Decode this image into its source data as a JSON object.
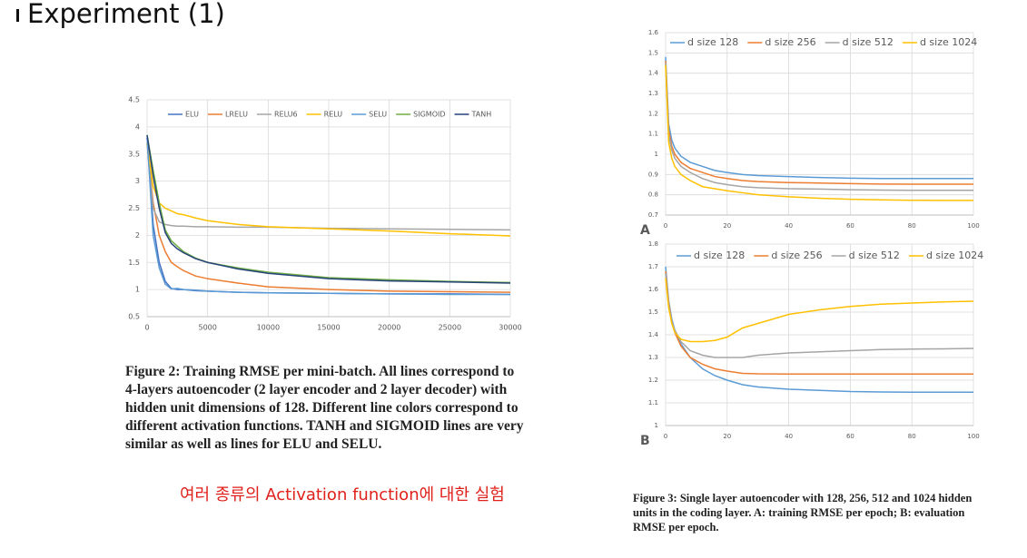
{
  "title": "Experiment (1)",
  "caption_left": "Figure 2: Training RMSE per mini-batch. All lines correspond to 4-layers autoencoder (2 layer encoder and 2 layer decoder) with hidden unit dimensions of 128. Different line colors correspond to different activation functions. TANH and SIGMOID lines are very similar as well as lines for ELU and SELU.",
  "note": "여러 종류의 Activation function에 대한 실험",
  "caption_right": "Figure 3: Single layer autoencoder with 128, 256, 512 and 1024 hidden units in the coding layer. A: training RMSE per epoch; B: evaluation RMSE per epoch.",
  "chart_data": [
    {
      "type": "line",
      "legend": "top",
      "grid": true,
      "x": [
        0,
        500,
        1000,
        1500,
        2000,
        2500,
        3000,
        4000,
        5000,
        7500,
        10000,
        15000,
        20000,
        25000,
        30000
      ],
      "xlim": [
        0,
        30000
      ],
      "xticks": [
        0,
        5000,
        10000,
        15000,
        20000,
        25000,
        30000
      ],
      "ylim": [
        0.5,
        4.5
      ],
      "yticks": [
        0.5,
        1,
        1.5,
        2,
        2.5,
        3,
        3.5,
        4,
        4.5
      ],
      "series": [
        {
          "name": "ELU",
          "color": "#4472c4",
          "values": [
            3.8,
            2.2,
            1.5,
            1.15,
            1.02,
            1.0,
            1.0,
            0.98,
            0.97,
            0.95,
            0.94,
            0.93,
            0.92,
            0.92,
            0.91
          ]
        },
        {
          "name": "LRELU",
          "color": "#ed7d31",
          "values": [
            3.7,
            2.6,
            2.0,
            1.7,
            1.5,
            1.42,
            1.35,
            1.25,
            1.2,
            1.12,
            1.05,
            1.0,
            0.97,
            0.96,
            0.95
          ]
        },
        {
          "name": "RELU6",
          "color": "#a5a5a5",
          "values": [
            3.7,
            2.5,
            2.25,
            2.2,
            2.18,
            2.17,
            2.17,
            2.16,
            2.16,
            2.15,
            2.15,
            2.13,
            2.12,
            2.11,
            2.1
          ]
        },
        {
          "name": "RELU",
          "color": "#ffc000",
          "values": [
            3.7,
            2.9,
            2.6,
            2.5,
            2.45,
            2.4,
            2.38,
            2.32,
            2.27,
            2.2,
            2.16,
            2.12,
            2.08,
            2.03,
            1.99
          ]
        },
        {
          "name": "SELU",
          "color": "#5b9bd5",
          "values": [
            3.8,
            2.0,
            1.4,
            1.1,
            1.01,
            1.02,
            1.0,
            0.99,
            0.97,
            0.95,
            0.94,
            0.93,
            0.92,
            0.91,
            0.91
          ]
        },
        {
          "name": "SIGMOID",
          "color": "#70ad47",
          "values": [
            3.85,
            3.2,
            2.6,
            2.1,
            1.9,
            1.8,
            1.7,
            1.58,
            1.5,
            1.4,
            1.32,
            1.22,
            1.18,
            1.15,
            1.13
          ]
        },
        {
          "name": "TANH",
          "color": "#264478",
          "values": [
            3.85,
            3.1,
            2.5,
            2.05,
            1.85,
            1.75,
            1.68,
            1.57,
            1.5,
            1.38,
            1.3,
            1.2,
            1.16,
            1.14,
            1.12
          ]
        }
      ]
    },
    {
      "type": "line",
      "legend": "top",
      "grid": true,
      "panel_label": "A",
      "x": [
        0,
        1,
        2,
        3,
        5,
        8,
        12,
        16,
        20,
        25,
        30,
        40,
        50,
        60,
        70,
        80,
        90,
        100
      ],
      "xlim": [
        0,
        100
      ],
      "xticks": [
        0,
        20,
        40,
        60,
        80,
        100
      ],
      "ylim": [
        0.7,
        1.6
      ],
      "yticks": [
        0.7,
        0.8,
        0.9,
        1,
        1.1,
        1.2,
        1.3,
        1.4,
        1.5,
        1.6
      ],
      "series": [
        {
          "name": "d size 128",
          "color": "#5b9bd5",
          "values": [
            1.48,
            1.15,
            1.07,
            1.03,
            0.99,
            0.96,
            0.94,
            0.92,
            0.91,
            0.9,
            0.895,
            0.89,
            0.885,
            0.882,
            0.88,
            0.88,
            0.88,
            0.88
          ]
        },
        {
          "name": "d size 256",
          "color": "#ed7d31",
          "values": [
            1.46,
            1.12,
            1.04,
            1.0,
            0.96,
            0.93,
            0.91,
            0.89,
            0.88,
            0.87,
            0.865,
            0.86,
            0.858,
            0.855,
            0.853,
            0.852,
            0.852,
            0.852
          ]
        },
        {
          "name": "d size 512",
          "color": "#a5a5a5",
          "values": [
            1.45,
            1.1,
            1.02,
            0.98,
            0.94,
            0.91,
            0.88,
            0.86,
            0.85,
            0.84,
            0.835,
            0.83,
            0.828,
            0.825,
            0.823,
            0.822,
            0.822,
            0.822
          ]
        },
        {
          "name": "d size 1024",
          "color": "#ffc000",
          "values": [
            1.44,
            1.06,
            0.98,
            0.94,
            0.9,
            0.87,
            0.84,
            0.83,
            0.82,
            0.81,
            0.8,
            0.79,
            0.783,
            0.778,
            0.775,
            0.773,
            0.772,
            0.772
          ]
        }
      ]
    },
    {
      "type": "line",
      "legend": "top",
      "grid": true,
      "panel_label": "B",
      "x": [
        0,
        1,
        2,
        3,
        5,
        8,
        12,
        16,
        20,
        25,
        30,
        40,
        50,
        60,
        70,
        80,
        90,
        100
      ],
      "xlim": [
        0,
        100
      ],
      "xticks": [
        0,
        20,
        40,
        60,
        80,
        100
      ],
      "ylim": [
        1,
        1.8
      ],
      "yticks": [
        1,
        1.1,
        1.2,
        1.3,
        1.4,
        1.5,
        1.6,
        1.7,
        1.8
      ],
      "series": [
        {
          "name": "d size 128",
          "color": "#5b9bd5",
          "values": [
            1.7,
            1.55,
            1.47,
            1.42,
            1.36,
            1.3,
            1.25,
            1.22,
            1.2,
            1.18,
            1.17,
            1.16,
            1.155,
            1.15,
            1.148,
            1.147,
            1.147,
            1.147
          ]
        },
        {
          "name": "d size 256",
          "color": "#ed7d31",
          "values": [
            1.68,
            1.54,
            1.46,
            1.41,
            1.35,
            1.3,
            1.27,
            1.25,
            1.24,
            1.23,
            1.228,
            1.227,
            1.227,
            1.227,
            1.227,
            1.227,
            1.227,
            1.227
          ]
        },
        {
          "name": "d size 512",
          "color": "#a5a5a5",
          "values": [
            1.67,
            1.53,
            1.46,
            1.42,
            1.37,
            1.33,
            1.31,
            1.3,
            1.3,
            1.3,
            1.31,
            1.32,
            1.325,
            1.33,
            1.335,
            1.337,
            1.338,
            1.34
          ]
        },
        {
          "name": "d size 1024",
          "color": "#ffc000",
          "values": [
            1.65,
            1.52,
            1.45,
            1.41,
            1.38,
            1.37,
            1.37,
            1.375,
            1.39,
            1.43,
            1.45,
            1.49,
            1.51,
            1.525,
            1.535,
            1.54,
            1.545,
            1.548
          ]
        }
      ]
    }
  ]
}
